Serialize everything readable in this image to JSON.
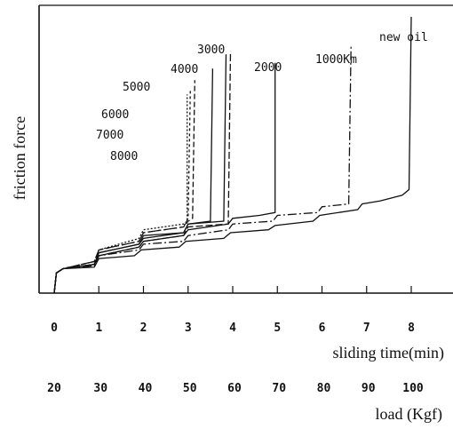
{
  "chart_data": {
    "type": "line",
    "ylabel": "friction force",
    "x_time": {
      "label": "sliding time(min)",
      "ticks": [
        "0",
        "1",
        "2",
        "3",
        "4",
        "5",
        "6",
        "7",
        "8"
      ],
      "range": [
        0,
        8.5
      ]
    },
    "x_load": {
      "label": "load (Kgf)",
      "ticks": [
        "20",
        "30",
        "40",
        "50",
        "60",
        "70",
        "80",
        "90",
        "100"
      ]
    },
    "ylim": [
      0,
      1
    ],
    "grid": false,
    "legend": "inline labels at seizure spikes",
    "series": [
      {
        "name": "new oil",
        "seizure_time": 8.0,
        "points": [
          [
            0,
            0
          ],
          [
            0.05,
            0.07
          ],
          [
            0.2,
            0.085
          ],
          [
            0.9,
            0.09
          ],
          [
            1.0,
            0.12
          ],
          [
            1.8,
            0.13
          ],
          [
            1.95,
            0.15
          ],
          [
            2.8,
            0.16
          ],
          [
            2.95,
            0.18
          ],
          [
            3.8,
            0.19
          ],
          [
            3.95,
            0.21
          ],
          [
            4.8,
            0.22
          ],
          [
            4.95,
            0.235
          ],
          [
            5.8,
            0.25
          ],
          [
            5.95,
            0.27
          ],
          [
            6.8,
            0.29
          ],
          [
            6.9,
            0.31
          ],
          [
            7.3,
            0.32
          ],
          [
            7.8,
            0.34
          ],
          [
            7.95,
            0.36
          ],
          [
            8.0,
            0.96
          ]
        ]
      },
      {
        "name": "1000Km",
        "seizure_time": 6.65,
        "points": [
          [
            0,
            0
          ],
          [
            0.05,
            0.07
          ],
          [
            0.2,
            0.085
          ],
          [
            0.9,
            0.095
          ],
          [
            1.0,
            0.13
          ],
          [
            1.9,
            0.15
          ],
          [
            2.0,
            0.17
          ],
          [
            2.9,
            0.18
          ],
          [
            3.0,
            0.2
          ],
          [
            3.9,
            0.22
          ],
          [
            4.0,
            0.24
          ],
          [
            4.9,
            0.25
          ],
          [
            5.0,
            0.27
          ],
          [
            5.9,
            0.28
          ],
          [
            6.0,
            0.3
          ],
          [
            6.6,
            0.31
          ],
          [
            6.65,
            0.86
          ]
        ]
      },
      {
        "name": "2000",
        "seizure_time": 4.95,
        "points": [
          [
            0,
            0
          ],
          [
            0.05,
            0.07
          ],
          [
            0.2,
            0.085
          ],
          [
            0.9,
            0.1
          ],
          [
            1.0,
            0.13
          ],
          [
            1.9,
            0.16
          ],
          [
            2.0,
            0.18
          ],
          [
            2.9,
            0.2
          ],
          [
            3.0,
            0.22
          ],
          [
            3.9,
            0.24
          ],
          [
            4.0,
            0.26
          ],
          [
            4.6,
            0.27
          ],
          [
            4.95,
            0.28
          ],
          [
            4.95,
            0.8
          ]
        ]
      },
      {
        "name": "3000",
        "seizure_time": 3.95,
        "points": [
          [
            0,
            0
          ],
          [
            0.05,
            0.07
          ],
          [
            0.2,
            0.085
          ],
          [
            0.9,
            0.1
          ],
          [
            1.0,
            0.13
          ],
          [
            1.9,
            0.16
          ],
          [
            2.0,
            0.18
          ],
          [
            2.9,
            0.2
          ],
          [
            3.0,
            0.23
          ],
          [
            3.9,
            0.24
          ],
          [
            3.95,
            0.84
          ]
        ]
      },
      {
        "name": "4000",
        "seizure_time": 3.85,
        "points": [
          [
            0,
            0
          ],
          [
            0.05,
            0.07
          ],
          [
            0.2,
            0.085
          ],
          [
            0.9,
            0.1
          ],
          [
            1.0,
            0.14
          ],
          [
            1.9,
            0.17
          ],
          [
            2.0,
            0.19
          ],
          [
            2.9,
            0.21
          ],
          [
            3.0,
            0.24
          ],
          [
            3.8,
            0.25
          ],
          [
            3.85,
            0.83
          ]
        ]
      },
      {
        "name": "5000",
        "seizure_time": 3.55,
        "points": [
          [
            0,
            0
          ],
          [
            0.05,
            0.07
          ],
          [
            0.2,
            0.085
          ],
          [
            0.9,
            0.1
          ],
          [
            1.0,
            0.14
          ],
          [
            1.9,
            0.17
          ],
          [
            2.0,
            0.2
          ],
          [
            2.9,
            0.21
          ],
          [
            3.0,
            0.24
          ],
          [
            3.5,
            0.25
          ],
          [
            3.55,
            0.78
          ]
        ]
      },
      {
        "name": "6000",
        "seizure_time": 3.15,
        "points": [
          [
            0,
            0
          ],
          [
            0.05,
            0.07
          ],
          [
            0.2,
            0.085
          ],
          [
            0.9,
            0.11
          ],
          [
            1.0,
            0.15
          ],
          [
            1.9,
            0.18
          ],
          [
            2.0,
            0.21
          ],
          [
            2.9,
            0.23
          ],
          [
            3.0,
            0.25
          ],
          [
            3.1,
            0.26
          ],
          [
            3.15,
            0.74
          ]
        ]
      },
      {
        "name": "7000",
        "seizure_time": 3.05,
        "points": [
          [
            0,
            0
          ],
          [
            0.05,
            0.07
          ],
          [
            0.2,
            0.085
          ],
          [
            0.9,
            0.11
          ],
          [
            1.0,
            0.15
          ],
          [
            1.9,
            0.18
          ],
          [
            2.0,
            0.21
          ],
          [
            2.9,
            0.23
          ],
          [
            3.0,
            0.26
          ],
          [
            3.05,
            0.71
          ]
        ]
      },
      {
        "name": "8000",
        "seizure_time": 2.98,
        "points": [
          [
            0,
            0
          ],
          [
            0.05,
            0.07
          ],
          [
            0.2,
            0.085
          ],
          [
            0.9,
            0.11
          ],
          [
            1.0,
            0.15
          ],
          [
            1.9,
            0.19
          ],
          [
            2.0,
            0.22
          ],
          [
            2.9,
            0.24
          ],
          [
            2.98,
            0.25
          ],
          [
            2.98,
            0.69
          ]
        ]
      }
    ],
    "series_colors": [
      "#111111",
      "#111111",
      "#111111",
      "#111111",
      "#111111",
      "#111111",
      "#111111",
      "#111111",
      "#111111"
    ],
    "series_dash": [
      "",
      "10,3,2,3",
      "",
      "8,3",
      "",
      "",
      "6,3",
      "3,3",
      "2,2"
    ]
  }
}
